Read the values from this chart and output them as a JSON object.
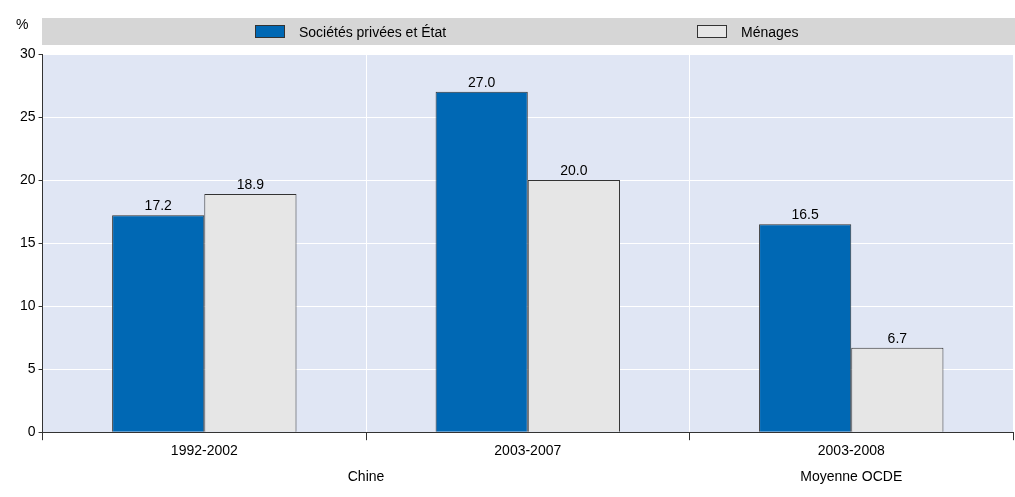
{
  "chart_data": {
    "type": "bar",
    "ylabel": "%",
    "categories": [
      "1992-2002",
      "2003-2007",
      "2003-2008"
    ],
    "series": [
      {
        "name": "Sociétés privées et État",
        "color": "#0068b4",
        "values": [
          17.2,
          27.0,
          16.5
        ],
        "value_labels": [
          "17.2",
          "27.0",
          "16.5"
        ]
      },
      {
        "name": "Ménages",
        "color": "#e6e6e6",
        "values": [
          18.9,
          20.0,
          6.7
        ],
        "value_labels": [
          "18.9",
          "20.0",
          "6.7"
        ]
      }
    ],
    "ylim": [
      0,
      30
    ],
    "yticks": [
      0,
      5,
      10,
      15,
      20,
      25,
      30
    ],
    "grid": true,
    "legend": "top",
    "annotations": [
      "Chine",
      "Moyenne OCDE"
    ]
  }
}
